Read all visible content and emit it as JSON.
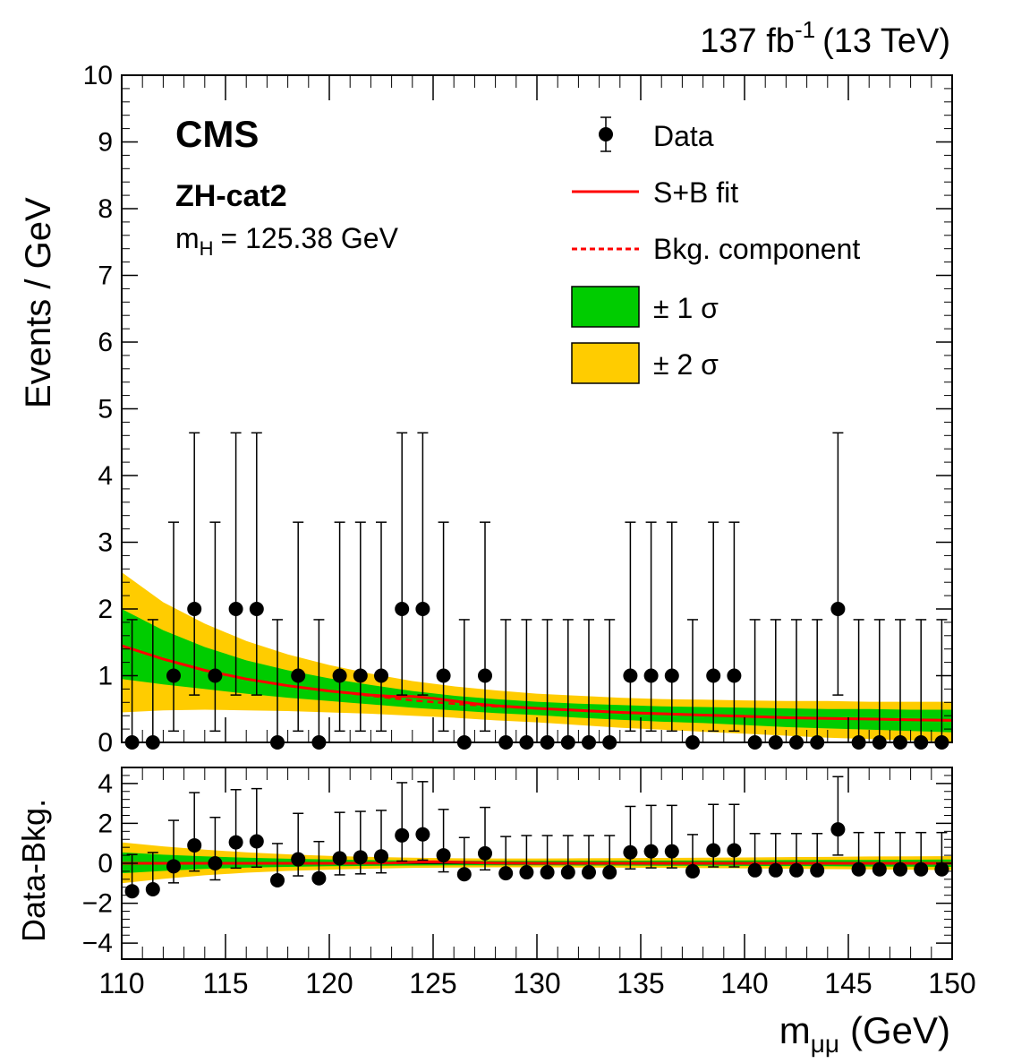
{
  "header": {
    "lumi": "137 fb",
    "lumi_exp": "-1",
    "energy": "(13 TeV)"
  },
  "labels": {
    "experiment": "CMS",
    "category": "ZH-cat2",
    "mass_symbol": "m",
    "mass_sub": "H",
    "mass_value": "= 125.38 GeV"
  },
  "legend": [
    {
      "id": "data",
      "label": "Data"
    },
    {
      "id": "sb",
      "label": "S+B fit"
    },
    {
      "id": "bkg",
      "label": "Bkg. component"
    },
    {
      "id": "one_sigma",
      "label": "± 1 σ"
    },
    {
      "id": "two_sigma",
      "label": "± 2 σ"
    }
  ],
  "colors": {
    "one_sigma": "#00cc00",
    "two_sigma": "#ffcc00",
    "fit": "#ff0000",
    "data": "#000000"
  },
  "chart_data": [
    {
      "type": "scatter",
      "panel": "main",
      "ylabel": "Events / GeV",
      "xlim": [
        110,
        150
      ],
      "ylim": [
        0,
        10
      ],
      "xticks": [
        110,
        115,
        120,
        125,
        130,
        135,
        140,
        145,
        150
      ],
      "yticks": [
        0,
        1,
        2,
        3,
        4,
        5,
        6,
        7,
        8,
        9,
        10
      ],
      "series": [
        {
          "name": "Data",
          "x": [
            110.5,
            111.5,
            112.5,
            113.5,
            114.5,
            115.5,
            116.5,
            117.5,
            118.5,
            119.5,
            120.5,
            121.5,
            122.5,
            123.5,
            124.5,
            125.5,
            126.5,
            127.5,
            128.5,
            129.5,
            130.5,
            131.5,
            132.5,
            133.5,
            134.5,
            135.5,
            136.5,
            137.5,
            138.5,
            139.5,
            140.5,
            141.5,
            142.5,
            143.5,
            144.5,
            145.5,
            146.5,
            147.5,
            148.5,
            149.5
          ],
          "y": [
            0,
            0,
            1,
            2,
            1,
            2,
            2,
            0,
            1,
            0,
            1,
            1,
            1,
            2,
            2,
            1,
            0,
            1,
            0,
            0,
            0,
            0,
            0,
            0,
            1,
            1,
            1,
            0,
            1,
            1,
            0,
            0,
            0,
            0,
            2,
            0,
            0,
            0,
            0,
            0
          ],
          "err_low": [
            0,
            0,
            0.83,
            1.29,
            0.83,
            1.29,
            1.29,
            0,
            0.83,
            0,
            0.83,
            0.83,
            0.83,
            1.29,
            1.29,
            0.83,
            0,
            0.83,
            0,
            0,
            0,
            0,
            0,
            0,
            0.83,
            0.83,
            0.83,
            0,
            0.83,
            0.83,
            0,
            0,
            0,
            0,
            1.29,
            0,
            0,
            0,
            0,
            0
          ],
          "err_high": [
            1.84,
            1.84,
            2.3,
            2.64,
            2.3,
            2.64,
            2.64,
            1.84,
            2.3,
            1.84,
            2.3,
            2.3,
            2.3,
            2.64,
            2.64,
            2.3,
            1.84,
            2.3,
            1.84,
            1.84,
            1.84,
            1.84,
            1.84,
            1.84,
            2.3,
            2.3,
            2.3,
            1.84,
            2.3,
            2.3,
            1.84,
            1.84,
            1.84,
            1.84,
            2.64,
            1.84,
            1.84,
            1.84,
            1.84,
            1.84
          ]
        },
        {
          "name": "S+B fit",
          "x": [
            110,
            112,
            114,
            116,
            118,
            120,
            122,
            123,
            124,
            125,
            126,
            127,
            128,
            130,
            132,
            134,
            136,
            138,
            140,
            142,
            144,
            146,
            148,
            150
          ],
          "y": [
            1.45,
            1.25,
            1.08,
            0.95,
            0.85,
            0.77,
            0.71,
            0.69,
            0.69,
            0.66,
            0.62,
            0.58,
            0.55,
            0.51,
            0.48,
            0.45,
            0.43,
            0.41,
            0.39,
            0.37,
            0.36,
            0.35,
            0.34,
            0.33
          ]
        },
        {
          "name": "Bkg. component",
          "x": [
            110,
            112,
            114,
            116,
            118,
            120,
            122,
            124,
            126,
            128,
            130,
            132,
            134,
            136,
            138,
            140,
            142,
            144,
            146,
            148,
            150
          ],
          "y": [
            1.45,
            1.25,
            1.08,
            0.95,
            0.85,
            0.77,
            0.7,
            0.63,
            0.58,
            0.54,
            0.51,
            0.48,
            0.45,
            0.43,
            0.41,
            0.39,
            0.37,
            0.36,
            0.35,
            0.34,
            0.33
          ]
        }
      ],
      "bands": {
        "x": [
          110,
          112,
          114,
          116,
          118,
          120,
          122,
          124,
          126,
          128,
          130,
          132,
          134,
          136,
          138,
          140,
          142,
          144,
          146,
          148,
          150
        ],
        "one_sigma_low": [
          0.95,
          0.87,
          0.8,
          0.73,
          0.67,
          0.62,
          0.57,
          0.52,
          0.48,
          0.44,
          0.41,
          0.37,
          0.34,
          0.31,
          0.29,
          0.26,
          0.23,
          0.21,
          0.19,
          0.17,
          0.15
        ],
        "one_sigma_high": [
          2.0,
          1.68,
          1.43,
          1.23,
          1.08,
          0.96,
          0.86,
          0.77,
          0.7,
          0.65,
          0.61,
          0.58,
          0.56,
          0.54,
          0.53,
          0.52,
          0.51,
          0.5,
          0.5,
          0.49,
          0.49
        ],
        "two_sigma_low": [
          0.45,
          0.48,
          0.49,
          0.48,
          0.47,
          0.45,
          0.43,
          0.4,
          0.37,
          0.33,
          0.3,
          0.26,
          0.22,
          0.19,
          0.16,
          0.13,
          0.1,
          0.07,
          0.05,
          0.03,
          0.01
        ],
        "two_sigma_high": [
          2.55,
          2.1,
          1.78,
          1.52,
          1.32,
          1.16,
          1.03,
          0.92,
          0.84,
          0.78,
          0.73,
          0.7,
          0.67,
          0.65,
          0.64,
          0.63,
          0.62,
          0.62,
          0.61,
          0.61,
          0.61
        ]
      }
    },
    {
      "type": "scatter",
      "panel": "ratio",
      "ylabel": "Data-Bkg.",
      "xlabel_base": "m",
      "xlabel_sub": "μμ",
      "xlabel_unit": "(GeV)",
      "xlim": [
        110,
        150
      ],
      "ylim": [
        -4.8,
        4.8
      ],
      "xticks": [
        110,
        115,
        120,
        125,
        130,
        135,
        140,
        145,
        150
      ],
      "yticks": [
        -4,
        -2,
        0,
        2,
        4
      ],
      "series": [
        {
          "name": "Data-Bkg.",
          "x": [
            110.5,
            111.5,
            112.5,
            113.5,
            114.5,
            115.5,
            116.5,
            117.5,
            118.5,
            119.5,
            120.5,
            121.5,
            122.5,
            123.5,
            124.5,
            125.5,
            126.5,
            127.5,
            128.5,
            129.5,
            130.5,
            131.5,
            132.5,
            133.5,
            134.5,
            135.5,
            136.5,
            137.5,
            138.5,
            139.5,
            140.5,
            141.5,
            142.5,
            143.5,
            144.5,
            145.5,
            146.5,
            147.5,
            148.5,
            149.5
          ],
          "y": [
            -1.4,
            -1.3,
            -0.15,
            0.9,
            0.0,
            1.05,
            1.1,
            -0.85,
            0.2,
            -0.75,
            0.25,
            0.3,
            0.35,
            1.4,
            1.45,
            0.4,
            -0.55,
            0.5,
            -0.5,
            -0.45,
            -0.45,
            -0.45,
            -0.45,
            -0.45,
            0.55,
            0.6,
            0.6,
            -0.4,
            0.65,
            0.65,
            -0.35,
            -0.35,
            -0.35,
            -0.35,
            1.7,
            -0.3,
            -0.3,
            -0.3,
            -0.3,
            -0.3
          ],
          "err_low": [
            0,
            0,
            0.83,
            1.29,
            0.83,
            1.29,
            1.29,
            0,
            0.83,
            0,
            0.83,
            0.83,
            0.83,
            1.29,
            1.29,
            0.83,
            0,
            0.83,
            0,
            0,
            0,
            0,
            0,
            0,
            0.83,
            0.83,
            0.83,
            0,
            0.83,
            0.83,
            0,
            0,
            0,
            0,
            1.29,
            0,
            0,
            0,
            0,
            0
          ],
          "err_high": [
            1.84,
            1.84,
            2.3,
            2.64,
            2.3,
            2.64,
            2.64,
            1.84,
            2.3,
            1.84,
            2.3,
            2.3,
            2.3,
            2.64,
            2.64,
            2.3,
            1.84,
            2.3,
            1.84,
            1.84,
            1.84,
            1.84,
            1.84,
            1.84,
            2.3,
            2.3,
            2.3,
            1.84,
            2.3,
            2.3,
            1.84,
            1.84,
            1.84,
            1.84,
            2.64,
            1.84,
            1.84,
            1.84,
            1.84,
            1.84
          ]
        },
        {
          "name": "S+B fit",
          "x": [
            110,
            120,
            122,
            123,
            124,
            125,
            126,
            127,
            128,
            130,
            150
          ],
          "y": [
            0,
            0,
            0.01,
            0.02,
            0.06,
            0.08,
            0.06,
            0.03,
            0.01,
            0,
            0
          ]
        }
      ],
      "bands": {
        "x": [
          110,
          112,
          114,
          116,
          118,
          120,
          122,
          124,
          126,
          128,
          130,
          132,
          134,
          136,
          138,
          140,
          142,
          144,
          146,
          148,
          150
        ],
        "one_sigma_low": [
          -0.5,
          -0.38,
          -0.28,
          -0.22,
          -0.18,
          -0.15,
          -0.13,
          -0.11,
          -0.1,
          -0.1,
          -0.1,
          -0.11,
          -0.11,
          -0.12,
          -0.12,
          -0.13,
          -0.14,
          -0.15,
          -0.16,
          -0.17,
          -0.18
        ],
        "one_sigma_high": [
          0.55,
          0.43,
          0.35,
          0.28,
          0.23,
          0.19,
          0.16,
          0.14,
          0.13,
          0.12,
          0.12,
          0.13,
          0.13,
          0.14,
          0.14,
          0.15,
          0.16,
          0.17,
          0.17,
          0.18,
          0.19
        ],
        "two_sigma_low": [
          -1.0,
          -0.78,
          -0.6,
          -0.47,
          -0.38,
          -0.32,
          -0.27,
          -0.23,
          -0.21,
          -0.2,
          -0.2,
          -0.21,
          -0.22,
          -0.23,
          -0.24,
          -0.25,
          -0.27,
          -0.29,
          -0.3,
          -0.32,
          -0.34
        ],
        "two_sigma_high": [
          1.05,
          0.85,
          0.68,
          0.55,
          0.45,
          0.37,
          0.32,
          0.28,
          0.25,
          0.24,
          0.24,
          0.25,
          0.26,
          0.27,
          0.28,
          0.29,
          0.31,
          0.32,
          0.34,
          0.35,
          0.36
        ]
      }
    }
  ]
}
